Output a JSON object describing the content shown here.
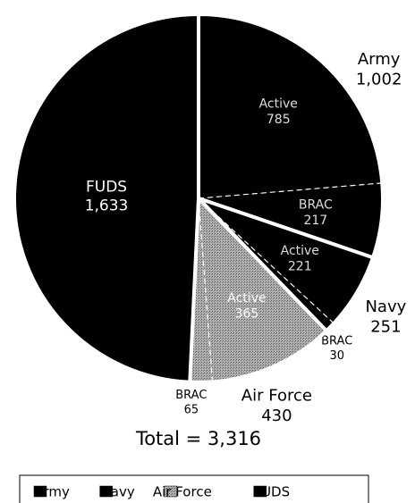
{
  "chart_data": {
    "type": "pie",
    "annotation": "Total = 3,316",
    "series": [
      {
        "name": "Army",
        "color": "#000000",
        "value": 1002,
        "value_label": "1,002",
        "segments": [
          {
            "name": "Active",
            "value": 785
          },
          {
            "name": "BRAC",
            "value": 217
          }
        ]
      },
      {
        "name": "Navy",
        "color": "#000000",
        "value": 251,
        "segments": [
          {
            "name": "Active",
            "value": 221
          },
          {
            "name": "BRAC",
            "value": 30
          }
        ]
      },
      {
        "name": "Air Force",
        "color": "#9a9a9a",
        "value": 430,
        "segments": [
          {
            "name": "Active",
            "value": 365
          },
          {
            "name": "BRAC",
            "value": 65
          }
        ]
      },
      {
        "name": "FUDS",
        "color": "#000000",
        "value": 1633,
        "value_label": "1,633"
      }
    ]
  }
}
